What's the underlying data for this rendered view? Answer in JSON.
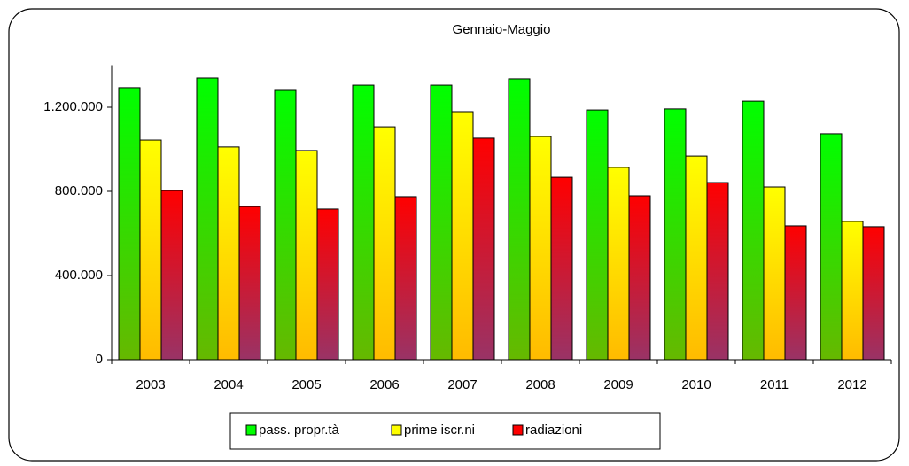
{
  "chart_data": {
    "type": "bar",
    "title": "Gennaio-Maggio",
    "categories": [
      "2003",
      "2004",
      "2005",
      "2006",
      "2007",
      "2008",
      "2009",
      "2010",
      "2011",
      "2012"
    ],
    "series": [
      {
        "name": "pass. propr.tà",
        "color": "#00ff00",
        "values": [
          1293000,
          1339000,
          1280000,
          1305000,
          1305000,
          1335000,
          1187000,
          1192000,
          1229000,
          1074000
        ]
      },
      {
        "name": "prime iscr.ni",
        "color": "#ffff00",
        "values": [
          1044000,
          1011000,
          994000,
          1107000,
          1179000,
          1061000,
          914000,
          968000,
          821000,
          657000
        ]
      },
      {
        "name": "radiazioni",
        "color": "#ff0000",
        "values": [
          804000,
          728000,
          716000,
          775000,
          1053000,
          867000,
          779000,
          842000,
          636000,
          632000
        ]
      }
    ],
    "ylim": [
      0,
      1400000
    ],
    "yticks": [
      0,
      {
        "value": 400000,
        "label": "400.000"
      },
      {
        "value": 800000,
        "label": "800.000"
      },
      {
        "value": 1200000,
        "label": "1.200.000"
      }
    ],
    "grid": false,
    "legend": "bottom"
  }
}
